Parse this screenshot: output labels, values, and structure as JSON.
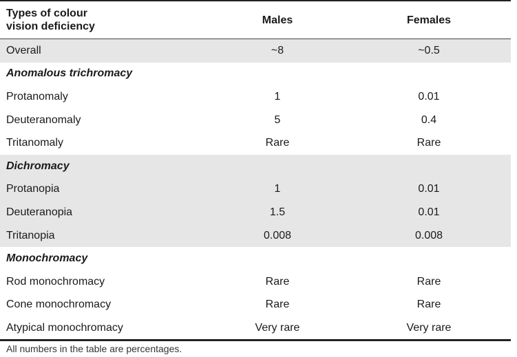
{
  "header": {
    "type_line1": "Types of colour",
    "type_line2": "vision deficiency",
    "males": "Males",
    "females": "Females"
  },
  "rows": [
    {
      "name": "Overall",
      "males": "~8",
      "females": "~0.5"
    },
    {
      "name": "Anomalous trichromacy"
    },
    {
      "name": "Protanomaly",
      "males": "1",
      "females": "0.01"
    },
    {
      "name": "Deuteranomaly",
      "males": "5",
      "females": "0.4"
    },
    {
      "name": "Tritanomaly",
      "males": "Rare",
      "females": "Rare"
    },
    {
      "name": "Dichromacy"
    },
    {
      "name": "Protanopia",
      "males": "1",
      "females": "0.01"
    },
    {
      "name": "Deuteranopia",
      "males": "1.5",
      "females": "0.01"
    },
    {
      "name": "Tritanopia",
      "males": "0.008",
      "females": "0.008"
    },
    {
      "name": "Monochromacy"
    },
    {
      "name": "Rod monochromacy",
      "males": "Rare",
      "females": "Rare"
    },
    {
      "name": "Cone monochromacy",
      "males": "Rare",
      "females": "Rare"
    },
    {
      "name": "Atypical monochromacy",
      "males": "Very rare",
      "females": "Very rare"
    }
  ],
  "footnote": "All numbers in the table are percentages.",
  "colors": {
    "shade": "#e6e6e6",
    "rule": "#222222"
  }
}
